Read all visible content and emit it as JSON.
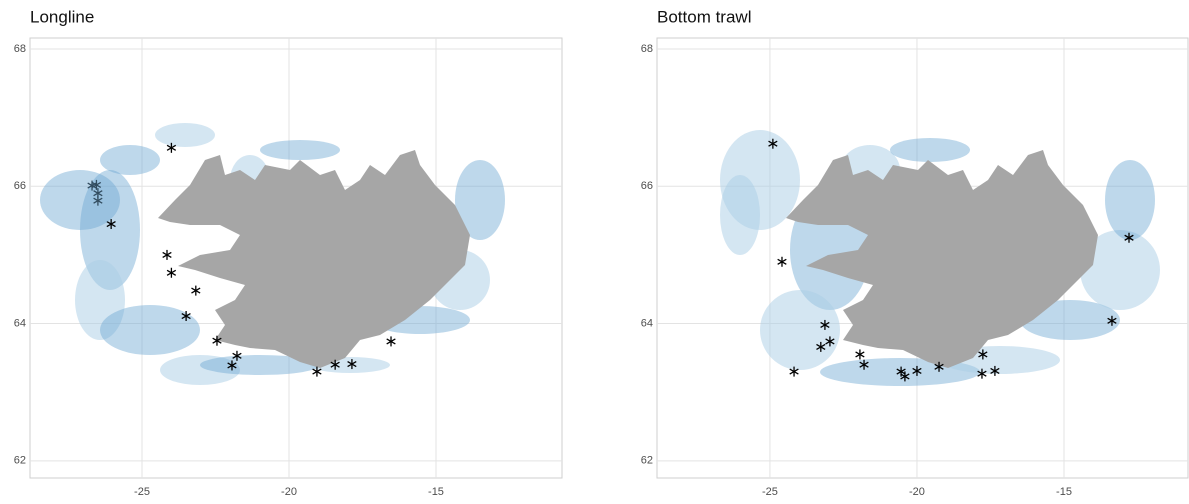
{
  "chart_data": [
    {
      "type": "scatter",
      "title": "Longline",
      "x": [
        -26.7,
        -26.55,
        -26.5,
        -26.5,
        -26.05,
        -24.0,
        -24.15,
        -24.0,
        -23.17,
        -23.5,
        -22.45,
        -21.77,
        -21.94,
        -19.05,
        -18.43,
        -17.86,
        -16.53
      ],
      "values": [
        66.01,
        66.02,
        65.9,
        65.79,
        65.45,
        66.56,
        65.0,
        64.74,
        64.48,
        64.11,
        63.75,
        63.53,
        63.39,
        63.3,
        63.4,
        63.41,
        63.74
      ],
      "color": "#000000",
      "xlim": [
        -28.81,
        -10.68
      ],
      "ylim": [
        61.75,
        68.16
      ],
      "xticks": [
        -25,
        -20,
        -15
      ],
      "yticks": [
        62,
        64,
        66,
        68
      ],
      "grid": true
    },
    {
      "type": "scatter",
      "title": "Bottom trawl",
      "x": [
        -24.9,
        -24.59,
        -12.79,
        -13.37,
        -23.13,
        -23.27,
        -22.96,
        -24.18,
        -21.94,
        -21.8,
        -20.54,
        -20.41,
        -20.0,
        -19.25,
        -17.76,
        -17.79,
        -17.35
      ],
      "values": [
        66.62,
        64.9,
        65.25,
        64.04,
        63.98,
        63.66,
        63.74,
        63.3,
        63.55,
        63.4,
        63.3,
        63.23,
        63.31,
        63.37,
        63.55,
        63.27,
        63.31
      ],
      "color": "#000000",
      "xlim": [
        -28.84,
        -10.75
      ],
      "ylim": [
        61.75,
        68.16
      ],
      "xticks": [
        -25,
        -20,
        -15
      ],
      "yticks": [
        62,
        64,
        66,
        68
      ],
      "grid": true
    }
  ]
}
